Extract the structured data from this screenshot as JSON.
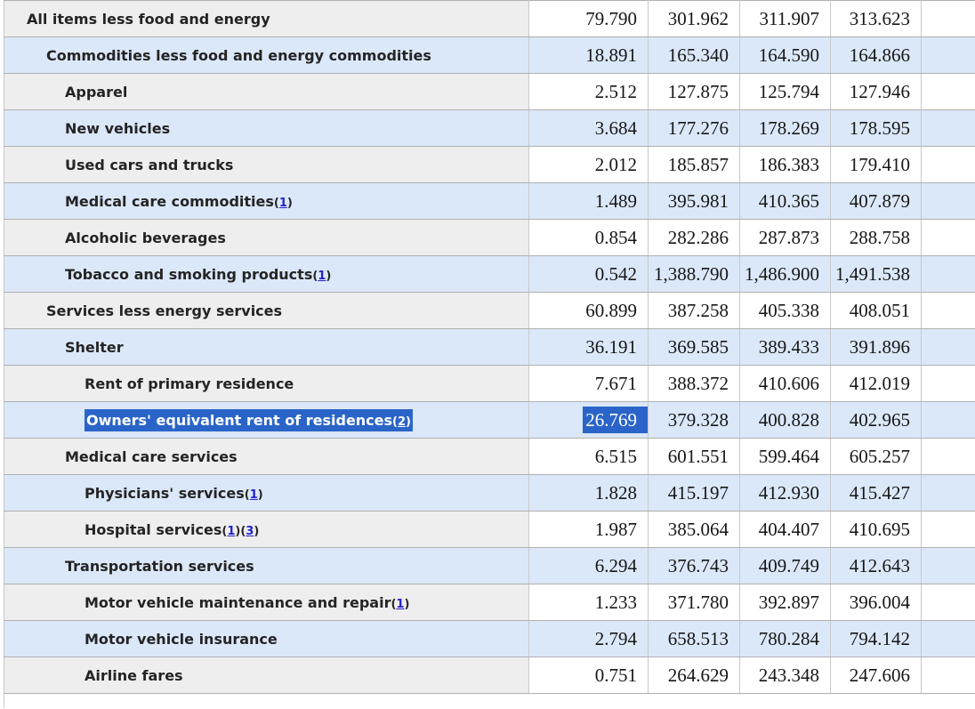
{
  "colors": {
    "row_blue": "#dbe8f9",
    "row_gray_label": "#eeeeee",
    "row_gray_data": "#ffffff",
    "selection_highlight": "#2a64c8",
    "selection_text": "#ffffff",
    "footnote_link": "#2222cc",
    "label_text": "#242424",
    "number_text": "#161616",
    "border_horizontal": "#b0b0b0",
    "border_vertical": "#c9c9c9"
  },
  "table": {
    "rows": [
      {
        "label": "All items less food and energy",
        "indent": 1,
        "footnotes": [],
        "tone": "gray",
        "selected": false,
        "values": [
          "79.790",
          "301.962",
          "311.907",
          "313.623"
        ]
      },
      {
        "label": "Commodities less food and energy commodities",
        "indent": 2,
        "footnotes": [],
        "tone": "blue",
        "selected": false,
        "values": [
          "18.891",
          "165.340",
          "164.590",
          "164.866"
        ]
      },
      {
        "label": "Apparel",
        "indent": 3,
        "footnotes": [],
        "tone": "gray",
        "selected": false,
        "values": [
          "2.512",
          "127.875",
          "125.794",
          "127.946"
        ]
      },
      {
        "label": "New vehicles",
        "indent": 3,
        "footnotes": [],
        "tone": "blue",
        "selected": false,
        "values": [
          "3.684",
          "177.276",
          "178.269",
          "178.595"
        ]
      },
      {
        "label": "Used cars and trucks",
        "indent": 3,
        "footnotes": [],
        "tone": "gray",
        "selected": false,
        "values": [
          "2.012",
          "185.857",
          "186.383",
          "179.410"
        ]
      },
      {
        "label": "Medical care commodities",
        "indent": 3,
        "footnotes": [
          "1"
        ],
        "tone": "blue",
        "selected": false,
        "values": [
          "1.489",
          "395.981",
          "410.365",
          "407.879"
        ]
      },
      {
        "label": "Alcoholic beverages",
        "indent": 3,
        "footnotes": [],
        "tone": "gray",
        "selected": false,
        "values": [
          "0.854",
          "282.286",
          "287.873",
          "288.758"
        ]
      },
      {
        "label": "Tobacco and smoking products",
        "indent": 3,
        "footnotes": [
          "1"
        ],
        "tone": "blue",
        "selected": false,
        "values": [
          "0.542",
          "1,388.790",
          "1,486.900",
          "1,491.538"
        ]
      },
      {
        "label": "Services less energy services",
        "indent": 2,
        "footnotes": [],
        "tone": "gray",
        "selected": false,
        "values": [
          "60.899",
          "387.258",
          "405.338",
          "408.051"
        ]
      },
      {
        "label": "Shelter",
        "indent": 3,
        "footnotes": [],
        "tone": "blue",
        "selected": false,
        "values": [
          "36.191",
          "369.585",
          "389.433",
          "391.896"
        ]
      },
      {
        "label": "Rent of primary residence",
        "indent": 4,
        "footnotes": [],
        "tone": "gray",
        "selected": false,
        "values": [
          "7.671",
          "388.372",
          "410.606",
          "412.019"
        ]
      },
      {
        "label": "Owners' equivalent rent of residences",
        "indent": 4,
        "footnotes": [
          "2"
        ],
        "tone": "blue",
        "selected": true,
        "values": [
          "26.769",
          "379.328",
          "400.828",
          "402.965"
        ]
      },
      {
        "label": "Medical care services",
        "indent": 3,
        "footnotes": [],
        "tone": "gray",
        "selected": false,
        "values": [
          "6.515",
          "601.551",
          "599.464",
          "605.257"
        ]
      },
      {
        "label": "Physicians' services",
        "indent": 4,
        "footnotes": [
          "1"
        ],
        "tone": "blue",
        "selected": false,
        "values": [
          "1.828",
          "415.197",
          "412.930",
          "415.427"
        ]
      },
      {
        "label": "Hospital services",
        "indent": 4,
        "footnotes": [
          "1",
          "3"
        ],
        "tone": "gray",
        "selected": false,
        "values": [
          "1.987",
          "385.064",
          "404.407",
          "410.695"
        ]
      },
      {
        "label": "Transportation services",
        "indent": 3,
        "footnotes": [],
        "tone": "blue",
        "selected": false,
        "values": [
          "6.294",
          "376.743",
          "409.749",
          "412.643"
        ]
      },
      {
        "label": "Motor vehicle maintenance and repair",
        "indent": 4,
        "footnotes": [
          "1"
        ],
        "tone": "gray",
        "selected": false,
        "values": [
          "1.233",
          "371.780",
          "392.897",
          "396.004"
        ]
      },
      {
        "label": "Motor vehicle insurance",
        "indent": 4,
        "footnotes": [],
        "tone": "blue",
        "selected": false,
        "values": [
          "2.794",
          "658.513",
          "780.284",
          "794.142"
        ]
      },
      {
        "label": "Airline fares",
        "indent": 4,
        "footnotes": [],
        "tone": "gray",
        "selected": false,
        "values": [
          "0.751",
          "264.629",
          "243.348",
          "247.606"
        ]
      }
    ]
  }
}
